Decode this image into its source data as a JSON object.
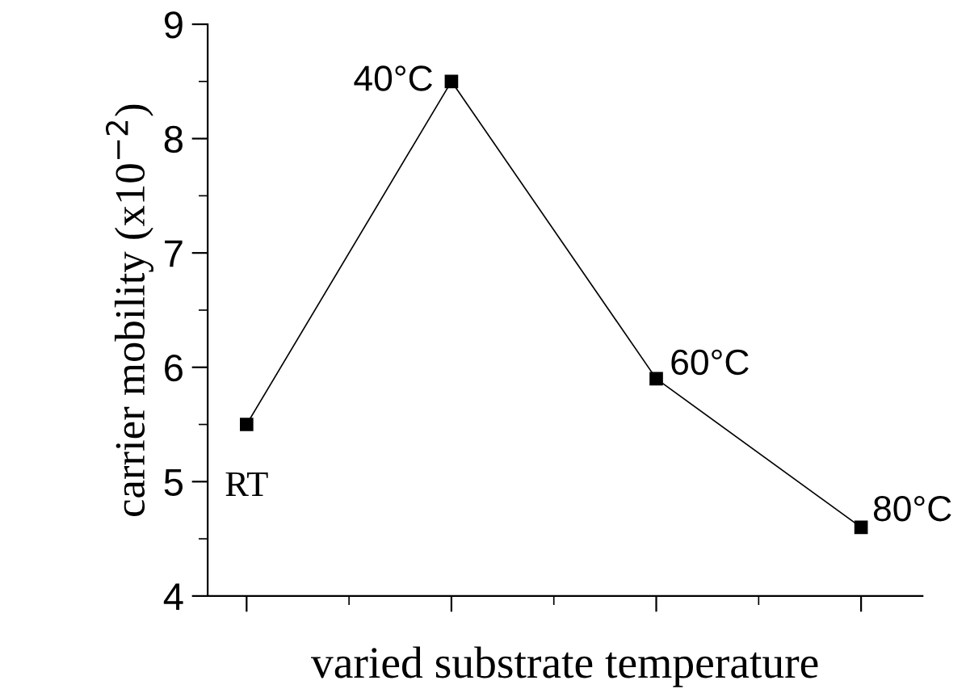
{
  "chart_data": {
    "type": "line",
    "xlabel": "varied substrate temperature",
    "ylabel": "carrier mobility (x10$^{−2}$)",
    "categories": [
      null,
      null,
      null,
      null
    ],
    "series": [
      {
        "color": "#000000",
        "values": [
          5.5,
          8.5,
          5.9,
          4.6
        ]
      }
    ],
    "ylim": [
      4,
      9
    ],
    "yticks": [
      4,
      5,
      6,
      7,
      8,
      9
    ],
    "marker": "square",
    "line_style": "solid",
    "grid": false,
    "legend": false,
    "annotations": [
      "RT",
      "40°C",
      "60°C",
      "80°C"
    ]
  }
}
